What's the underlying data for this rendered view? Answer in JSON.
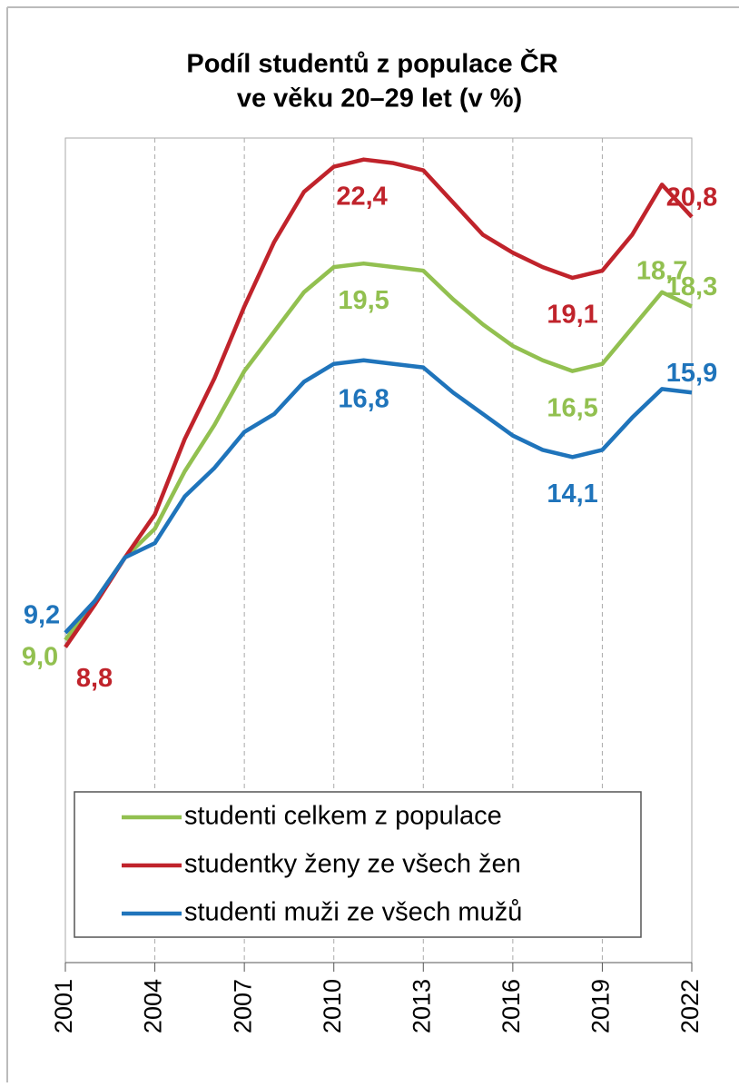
{
  "chart_data": {
    "type": "line",
    "title": [
      "Podíl studentů z populace ČR",
      "ve věku 20–29 let (v %)"
    ],
    "x": [
      2001,
      2002,
      2003,
      2004,
      2005,
      2006,
      2007,
      2008,
      2009,
      2010,
      2011,
      2012,
      2013,
      2014,
      2015,
      2016,
      2017,
      2018,
      2019,
      2020,
      2021,
      2022
    ],
    "xlim": [
      2001,
      2022
    ],
    "xticks": [
      2001,
      2004,
      2007,
      2010,
      2013,
      2016,
      2019,
      2022
    ],
    "ylim": [
      0,
      23
    ],
    "grid": true,
    "series": [
      {
        "name": "studenti celkem z populace",
        "color": "#92c050",
        "values": [
          9.0,
          10.1,
          11.3,
          12.1,
          13.7,
          15.0,
          16.5,
          17.6,
          18.7,
          19.4,
          19.5,
          19.4,
          19.3,
          18.5,
          17.8,
          17.2,
          16.8,
          16.5,
          16.7,
          17.7,
          18.7,
          18.3
        ],
        "value_labels": [
          "9,0",
          null,
          null,
          null,
          null,
          null,
          null,
          null,
          null,
          null,
          "19,5",
          null,
          null,
          null,
          null,
          null,
          null,
          "16,5",
          null,
          null,
          "18,7",
          "18,3"
        ]
      },
      {
        "name": "studentky ženy ze všech žen",
        "color": "#c0232b",
        "values": [
          8.8,
          10.0,
          11.3,
          12.5,
          14.6,
          16.3,
          18.3,
          20.1,
          21.5,
          22.2,
          22.4,
          22.3,
          22.1,
          21.2,
          20.3,
          19.8,
          19.4,
          19.1,
          19.3,
          20.3,
          21.7,
          20.8
        ],
        "value_labels": [
          "8,8",
          null,
          null,
          null,
          null,
          null,
          null,
          null,
          null,
          null,
          "22,4",
          null,
          null,
          null,
          null,
          null,
          null,
          "19,1",
          null,
          null,
          null,
          "20,8"
        ]
      },
      {
        "name": "studenti muži ze všech mužů",
        "color": "#1f74bb",
        "values": [
          9.2,
          10.1,
          11.3,
          11.7,
          13.0,
          13.8,
          14.8,
          15.3,
          16.2,
          16.7,
          16.8,
          16.7,
          16.6,
          15.9,
          15.3,
          14.7,
          14.3,
          14.1,
          14.3,
          15.2,
          16.0,
          15.9
        ],
        "value_labels": [
          "9,2",
          null,
          null,
          null,
          null,
          null,
          null,
          null,
          null,
          null,
          "16,8",
          null,
          null,
          null,
          null,
          null,
          null,
          "14,1",
          null,
          null,
          null,
          "15,9"
        ]
      }
    ]
  }
}
